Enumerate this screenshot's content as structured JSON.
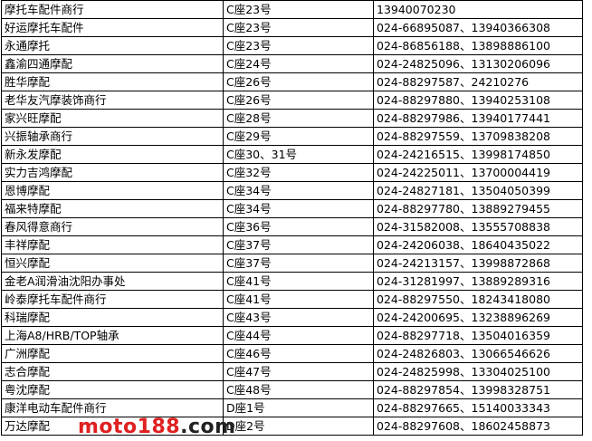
{
  "rows": [
    {
      "name": "摩托车配件商行",
      "location": "C座23号",
      "phone": "13940070230"
    },
    {
      "name": "好运摩托车配件",
      "location": "C座23号",
      "phone": "024-66895087、13940366308"
    },
    {
      "name": "永通摩托",
      "location": "C座23号",
      "phone": "024-86856188、13898886100"
    },
    {
      "name": "鑫渝四通摩配",
      "location": "C座24号",
      "phone": "024-24825096、13130206096"
    },
    {
      "name": "胜华摩配",
      "location": "C座26号",
      "phone": "024-88297587、24210276"
    },
    {
      "name": "老华友汽摩装饰商行",
      "location": "C座26号",
      "phone": "024-88297880、13940253108"
    },
    {
      "name": "家兴旺摩配",
      "location": "C座28号",
      "phone": "024-88297986、13940177441"
    },
    {
      "name": "兴振轴承商行",
      "location": "C座29号",
      "phone": "024-88297559、13709838208"
    },
    {
      "name": "新永发摩配",
      "location": "C座30、31号",
      "phone": "024-24216515、13998174850"
    },
    {
      "name": "实力吉鸿摩配",
      "location": "C座32号",
      "phone": "024-24225011、13700004419"
    },
    {
      "name": "恩博摩配",
      "location": "C座34号",
      "phone": "024-24827181、13504050399"
    },
    {
      "name": "福来特摩配",
      "location": "C座34号",
      "phone": "024-88297780、13889279455"
    },
    {
      "name": "春风得意商行",
      "location": "C座36号",
      "phone": "024-31582008、13555708838"
    },
    {
      "name": "丰祥摩配",
      "location": "C座37号",
      "phone": "024-24206038、18640435022"
    },
    {
      "name": "恒兴摩配",
      "location": "C座37号",
      "phone": "024-24213157、13998872868"
    },
    {
      "name": "金老A润滑油沈阳办事处",
      "location": "C座41号",
      "phone": "024-31281997、13889289316"
    },
    {
      "name": "岭泰摩托车配件商行",
      "location": "C座41号",
      "phone": "024-88297550、18243418080"
    },
    {
      "name": "科瑞摩配",
      "location": "C座43号",
      "phone": "024-24200695、13238896269"
    },
    {
      "name": "上海A8/HRB/TOP轴承",
      "location": "C座44号",
      "phone": "024-88297718、13504016359"
    },
    {
      "name": "广洲摩配",
      "location": "C座46号",
      "phone": "024-24826803、13066546626"
    },
    {
      "name": "志合摩配",
      "location": "C座47号",
      "phone": "024-24825998、13304025100"
    },
    {
      "name": "粤沈摩配",
      "location": "C座48号",
      "phone": "024-88297854、13998328751"
    },
    {
      "name": "康洋电动车配件商行",
      "location": "D座1号",
      "phone": "024-88297665、15140033343"
    },
    {
      "name": "万达摩配",
      "location": "D座2号",
      "phone": "024-88297608、18602458873"
    }
  ],
  "watermark": {
    "brand": "moto188",
    "suffix": ".com",
    "brand_color": "#e02020"
  }
}
